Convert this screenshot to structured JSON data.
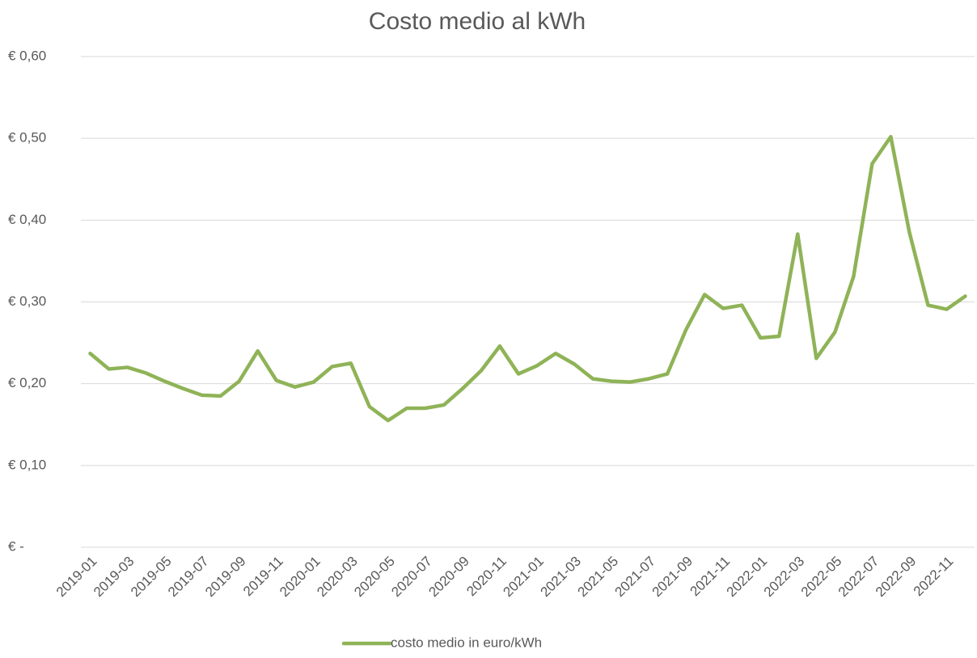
{
  "chart_data": {
    "type": "line",
    "title": "Costo medio al kWh",
    "categories": [
      "2019-01",
      null,
      "2019-03",
      null,
      "2019-05",
      null,
      "2019-07",
      null,
      "2019-09",
      null,
      "2019-11",
      null,
      "2020-01",
      null,
      "2020-03",
      null,
      "2020-05",
      null,
      "2020-07",
      null,
      "2020-09",
      null,
      "2020-11",
      null,
      "2021-01",
      null,
      "2021-03",
      null,
      "2021-05",
      null,
      "2021-07",
      null,
      "2021-09",
      null,
      "2021-11",
      null,
      "2022-01",
      null,
      "2022-03",
      null,
      "2022-05",
      null,
      "2022-07",
      null,
      "2022-09",
      null,
      "2022-11",
      null
    ],
    "series": [
      {
        "name": "costo medio in euro/kWh",
        "color": "#8fb357",
        "values": [
          0.237,
          0.218,
          0.22,
          0.213,
          0.203,
          0.194,
          0.186,
          0.185,
          0.203,
          0.24,
          0.204,
          0.196,
          0.202,
          0.221,
          0.225,
          0.172,
          0.155,
          0.17,
          0.17,
          0.174,
          0.194,
          0.216,
          0.246,
          0.212,
          0.222,
          0.237,
          0.224,
          0.206,
          0.203,
          0.202,
          0.206,
          0.212,
          0.266,
          0.309,
          0.292,
          0.296,
          0.256,
          0.258,
          0.383,
          0.231,
          0.263,
          0.331,
          0.469,
          0.502,
          0.385,
          0.296,
          0.291,
          0.307
        ]
      }
    ],
    "ylim": [
      0,
      0.6
    ],
    "yticks": [
      {
        "value": 0,
        "label": "€ -"
      },
      {
        "value": 0.1,
        "label": "€ 0,10"
      },
      {
        "value": 0.2,
        "label": "€ 0,20"
      },
      {
        "value": 0.3,
        "label": "€ 0,30"
      },
      {
        "value": 0.4,
        "label": "€ 0,40"
      },
      {
        "value": 0.5,
        "label": "€ 0,50"
      },
      {
        "value": 0.6,
        "label": "€ 0,60"
      }
    ],
    "grid": true,
    "legend": "bottom"
  }
}
